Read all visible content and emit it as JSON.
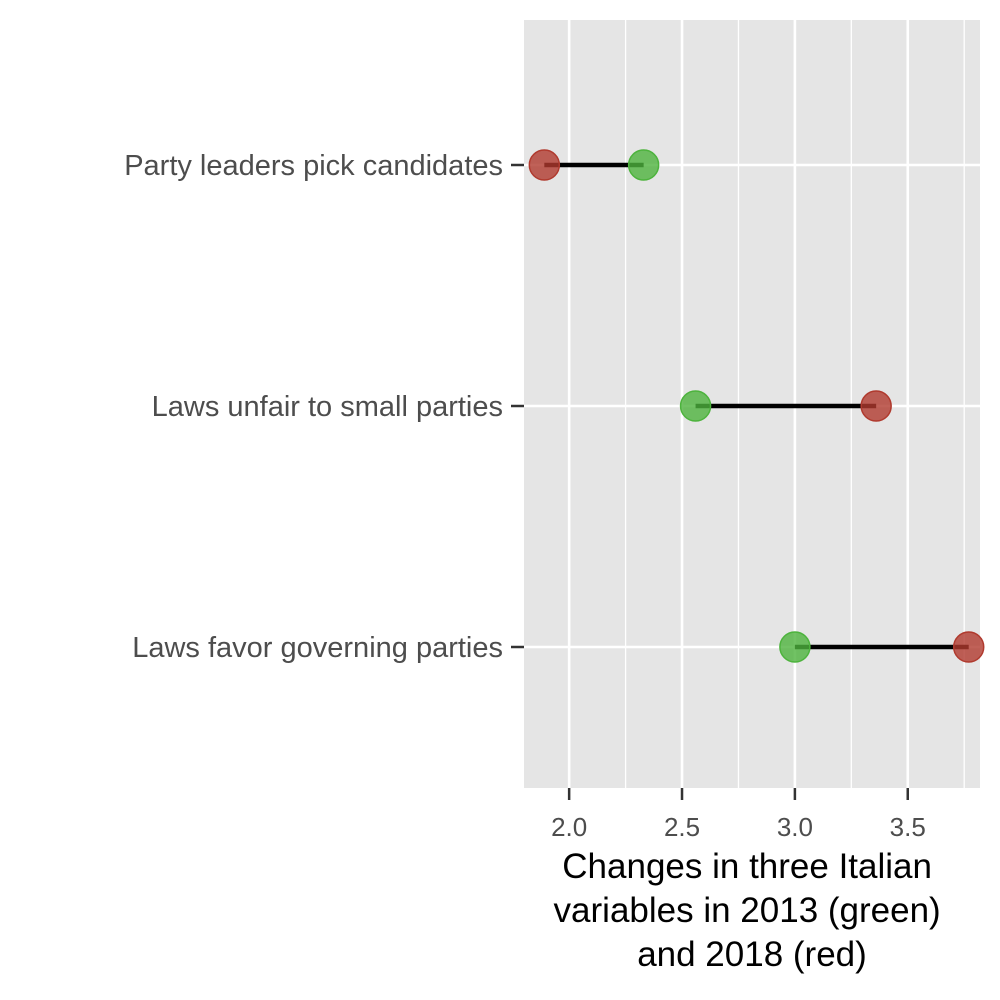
{
  "chart_data": {
    "type": "dumbbell",
    "title": "",
    "xlabel_lines": [
      "Changes in three Italian",
      "variables in 2013 (green)",
      "and 2018 (red)"
    ],
    "ylabel": "",
    "categories": [
      "Party leaders pick candidates",
      "Laws unfair to small parties",
      "Laws favor governing parties"
    ],
    "series": [
      {
        "name": "2013",
        "color": "#4db33d",
        "values": [
          2.33,
          2.56,
          3.0
        ]
      },
      {
        "name": "2018",
        "color": "#b03a2e",
        "values": [
          1.89,
          3.36,
          3.77
        ]
      }
    ],
    "xlim": [
      1.8,
      3.82
    ],
    "x_ticks": [
      2.0,
      2.5,
      3.0,
      3.5
    ],
    "x_tick_labels": [
      "2.0",
      "2.5",
      "3.0",
      "3.5"
    ],
    "grid": true,
    "panel_background": "#e5e5e5",
    "segment_color": "#000000"
  }
}
